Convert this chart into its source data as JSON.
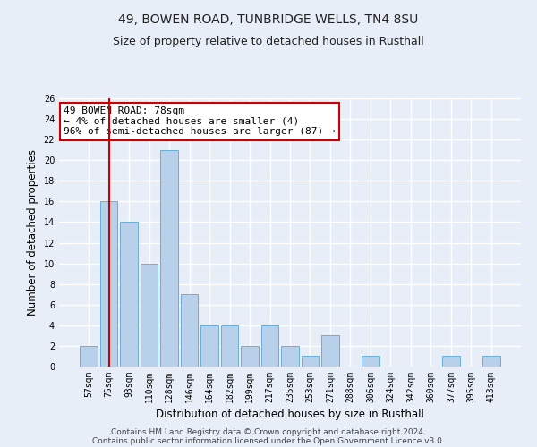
{
  "title": "49, BOWEN ROAD, TUNBRIDGE WELLS, TN4 8SU",
  "subtitle": "Size of property relative to detached houses in Rusthall",
  "xlabel": "Distribution of detached houses by size in Rusthall",
  "ylabel": "Number of detached properties",
  "categories": [
    "57sqm",
    "75sqm",
    "93sqm",
    "110sqm",
    "128sqm",
    "146sqm",
    "164sqm",
    "182sqm",
    "199sqm",
    "217sqm",
    "235sqm",
    "253sqm",
    "271sqm",
    "288sqm",
    "306sqm",
    "324sqm",
    "342sqm",
    "360sqm",
    "377sqm",
    "395sqm",
    "413sqm"
  ],
  "values": [
    2,
    16,
    14,
    10,
    21,
    7,
    4,
    4,
    2,
    4,
    2,
    1,
    3,
    0,
    1,
    0,
    0,
    0,
    1,
    0,
    1
  ],
  "bar_color": "#b8d0ea",
  "bar_edge_color": "#6aaed6",
  "background_color": "#e8eef8",
  "grid_color": "#ffffff",
  "vline_x_index": 1,
  "vline_color": "#cc0000",
  "ann_line1": "49 BOWEN ROAD: 78sqm",
  "ann_line2": "← 4% of detached houses are smaller (4)",
  "ann_line3": "96% of semi-detached houses are larger (87) →",
  "annotation_box_color": "#ffffff",
  "annotation_box_edge_color": "#cc0000",
  "ylim": [
    0,
    26
  ],
  "yticks": [
    0,
    2,
    4,
    6,
    8,
    10,
    12,
    14,
    16,
    18,
    20,
    22,
    24,
    26
  ],
  "footer_line1": "Contains HM Land Registry data © Crown copyright and database right 2024.",
  "footer_line2": "Contains public sector information licensed under the Open Government Licence v3.0.",
  "title_fontsize": 10,
  "subtitle_fontsize": 9,
  "xlabel_fontsize": 8.5,
  "ylabel_fontsize": 8.5,
  "tick_fontsize": 7,
  "ann_fontsize": 8,
  "footer_fontsize": 6.5
}
